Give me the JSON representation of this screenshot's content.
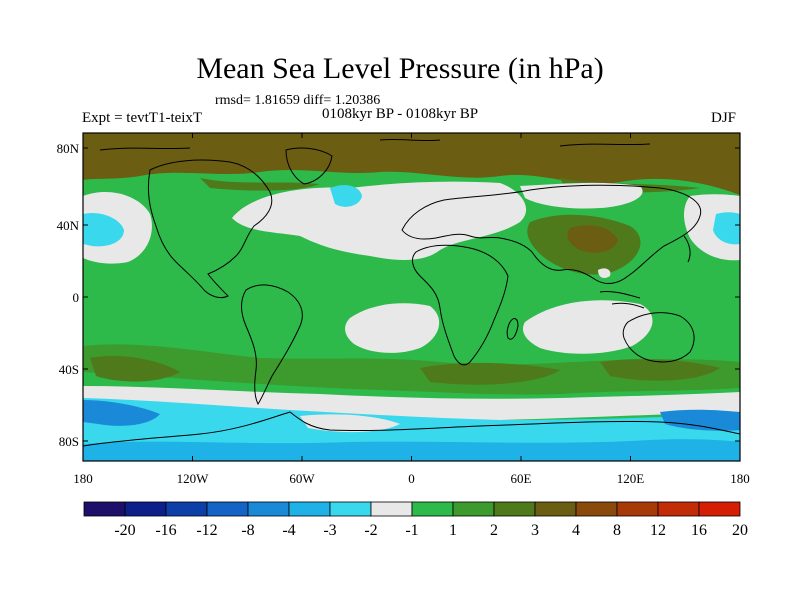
{
  "header": {
    "title": "Mean Sea Level Pressure (in hPa)",
    "stats": "rmsd= 1.81659 diff= 1.20386",
    "expt": "Expt = tevtT1-teixT",
    "period": "0108kyr BP - 0108kyr BP",
    "season": "DJF"
  },
  "axes": {
    "lat_labels": [
      "80N",
      "40N",
      "0",
      "40S",
      "80S"
    ],
    "lon_labels": [
      "180",
      "120W",
      "60W",
      "0",
      "60E",
      "120E",
      "180"
    ]
  },
  "colorbar": {
    "colors": [
      "#1e0f6b",
      "#0c1f8a",
      "#0c3fa8",
      "#1464c8",
      "#1a8ad8",
      "#1fb2e6",
      "#3ad8ec",
      "#e8e8e8",
      "#2dba4b",
      "#3d9a2c",
      "#4f7a1c",
      "#6b5d12",
      "#8a4a0c",
      "#a83a08",
      "#c22c06",
      "#d61e04"
    ],
    "labels": [
      "-20",
      "-16",
      "-12",
      "-8",
      "-4",
      "-3",
      "-2",
      "-1",
      "1",
      "2",
      "3",
      "4",
      "8",
      "12",
      "16",
      "20"
    ]
  }
}
